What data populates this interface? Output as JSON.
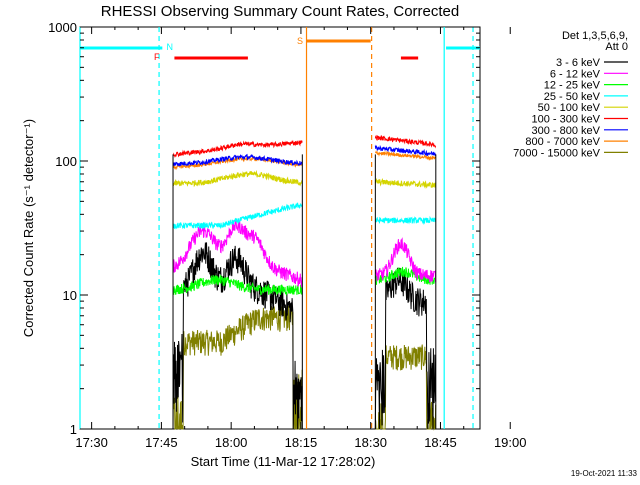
{
  "chart_data": {
    "type": "line",
    "title": "RHESSI Observing Summary Count Rates, Corrected",
    "xlabel": "Start Time (11-Mar-12 17:28:02)",
    "ylabel": "Corrected Count Rate (s⁻¹ detector⁻¹)",
    "yscale": "log",
    "ylim": [
      1,
      1000
    ],
    "xlim_minutes": [
      17.5,
      103.5
    ],
    "x_ticks": [
      {
        "label": "17:30",
        "t": 20
      },
      {
        "label": "17:45",
        "t": 35
      },
      {
        "label": "18:00",
        "t": 50
      },
      {
        "label": "18:15",
        "t": 65
      },
      {
        "label": "18:30",
        "t": 80
      },
      {
        "label": "18:45",
        "t": 95
      },
      {
        "label": "19:00",
        "t": 110
      }
    ],
    "y_ticks": [
      {
        "label": "1",
        "v": 1
      },
      {
        "label": "10",
        "v": 10
      },
      {
        "label": "100",
        "v": 100
      },
      {
        "label": "1000",
        "v": 1000
      }
    ],
    "legend": {
      "header_line1": "Det 1,3,5,6,9,",
      "header_line2": "Att 0"
    },
    "series": [
      {
        "name": "3 - 6 keV",
        "color": "#000000"
      },
      {
        "name": "6 - 12 keV",
        "color": "#ff00ff"
      },
      {
        "name": "12 - 25 keV",
        "color": "#00ff00"
      },
      {
        "name": "25 - 50 keV",
        "color": "#00ffff"
      },
      {
        "name": "50 - 100 keV",
        "color": "#d4d400"
      },
      {
        "name": "100 - 300 keV",
        "color": "#ff0000"
      },
      {
        "name": "300 - 800 keV",
        "color": "#0000ff"
      },
      {
        "name": "800 - 7000 keV",
        "color": "#ff8000"
      },
      {
        "name": "7000 - 15000 keV",
        "color": "#808000"
      }
    ],
    "intervals": [
      {
        "type": "night",
        "label": "N",
        "color": "#00ffff"
      },
      {
        "type": "flare",
        "label": "F",
        "color": "#ff0000"
      },
      {
        "type": "saa",
        "label": "S",
        "color": "#ff8000"
      }
    ],
    "timestamp": "19-Oct-2021 11:33"
  }
}
